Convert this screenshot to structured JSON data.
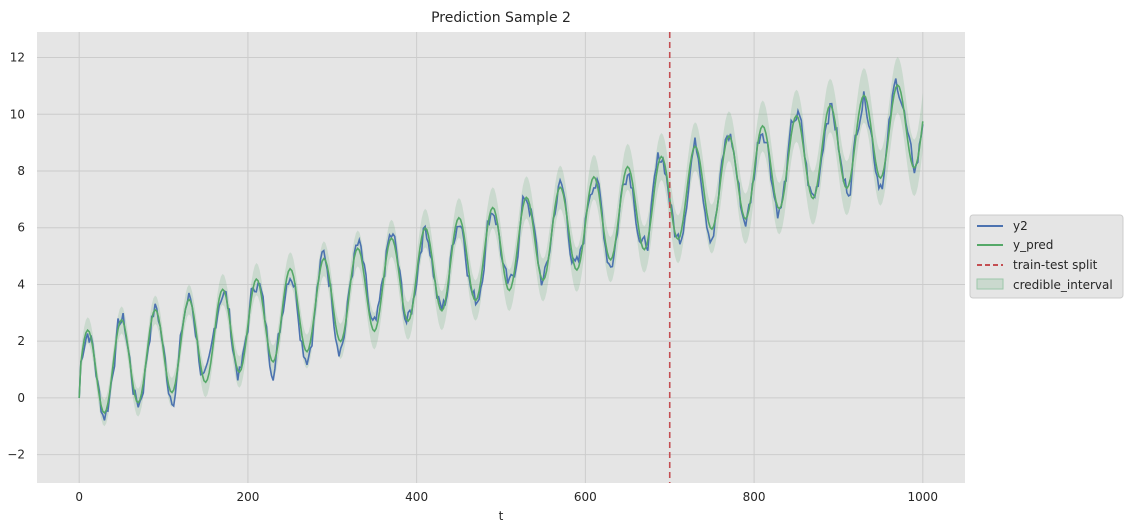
{
  "chart_data": {
    "type": "line",
    "title": "Prediction Sample 2",
    "xlabel": "t",
    "ylabel": "",
    "xlim": [
      -50,
      1050
    ],
    "ylim": [
      -3,
      12.9
    ],
    "xticks": [
      0,
      200,
      400,
      600,
      800,
      1000
    ],
    "yticks": [
      -2,
      0,
      2,
      4,
      6,
      8,
      10,
      12
    ],
    "grid": true,
    "legend_position": "right-outside",
    "split_t": 700,
    "signal": {
      "period": 40,
      "amplitude": 1.55,
      "trend_start": 0.75,
      "trend_slope": 0.009,
      "t_max": 1000
    },
    "series": [
      {
        "name": "y2",
        "color": "#4c72b0"
      },
      {
        "name": "y_pred",
        "color": "#55a868"
      },
      {
        "name": "train-test split",
        "color": "#c44e52"
      },
      {
        "name": "credible_interval",
        "color": "#55a868"
      }
    ]
  }
}
